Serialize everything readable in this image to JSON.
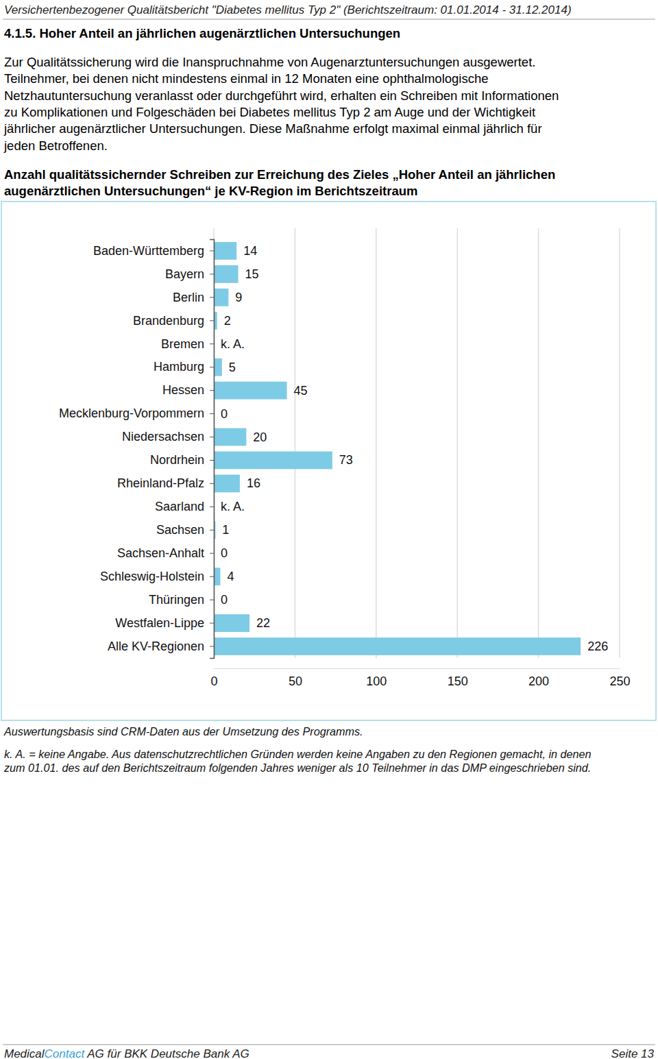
{
  "header": "Versichertenbezogener Qualitätsbericht \"Diabetes mellitus Typ 2\" (Berichtszeitraum: 01.01.2014 - 31.12.2014)",
  "section_title": "4.1.5. Hoher Anteil an jährlichen augenärztlichen Untersuchungen",
  "intro_lines": [
    "Zur Qualitätssicherung wird die Inanspruchnahme von Augenarztuntersuchungen ausgewertet.",
    "Teilnehmer, bei denen nicht mindestens einmal in 12 Monaten eine ophthalmologische",
    "Netzhautuntersuchung veranlasst oder durchgeführt wird, erhalten ein Schreiben mit Informationen",
    "zu Komplikationen und Folgeschäden bei Diabetes mellitus Typ 2 am Auge und der Wichtigkeit",
    "jährlicher augenärztlicher Untersuchungen. Diese Maßnahme erfolgt maximal einmal jährlich für",
    "jeden Betroffenen."
  ],
  "chart_data": {
    "type": "bar",
    "orientation": "horizontal",
    "title": [
      "Anzahl qualitätssichernder Schreiben zur Erreichung des Zieles „Hoher Anteil an jährlichen",
      "augenärztlichen Untersuchungen“ je KV-Region im Berichtszeitraum"
    ],
    "categories": [
      "Baden-Württemberg",
      "Bayern",
      "Berlin",
      "Brandenburg",
      "Bremen",
      "Hamburg",
      "Hessen",
      "Mecklenburg-Vorpommern",
      "Niedersachsen",
      "Nordrhein",
      "Rheinland-Pfalz",
      "Saarland",
      "Sachsen",
      "Sachsen-Anhalt",
      "Schleswig-Holstein",
      "Thüringen",
      "Westfalen-Lippe",
      "Alle KV-Regionen"
    ],
    "values": [
      14,
      15,
      9,
      2,
      null,
      5,
      45,
      0,
      20,
      73,
      16,
      null,
      1,
      0,
      4,
      0,
      22,
      226
    ],
    "value_labels": [
      "14",
      "15",
      "9",
      "2",
      "k. A.",
      "5",
      "45",
      "0",
      "20",
      "73",
      "16",
      "k. A.",
      "1",
      "0",
      "4",
      "0",
      "22",
      "226"
    ],
    "data_labels": true,
    "color": "#7ecbe6",
    "xlim": [
      0,
      250
    ],
    "xticks": [
      0,
      50,
      100,
      150,
      200,
      250
    ],
    "grid": true
  },
  "notes": [
    "Auswertungsbasis sind CRM-Daten aus der Umsetzung des Programms.",
    "k. A. = keine Angabe. Aus datenschutzrechtlichen Gründen werden keine Angaben zu den Regionen gemacht, in denen",
    "zum 01.01. des auf den Berichtszeitraum folgenden Jahres weniger als 10 Teilnehmer in das DMP eingeschrieben sind."
  ],
  "footer": {
    "left_parts": [
      "Medical",
      "Contact",
      " AG für BKK Deutsche Bank AG"
    ],
    "right": "Seite 13"
  }
}
